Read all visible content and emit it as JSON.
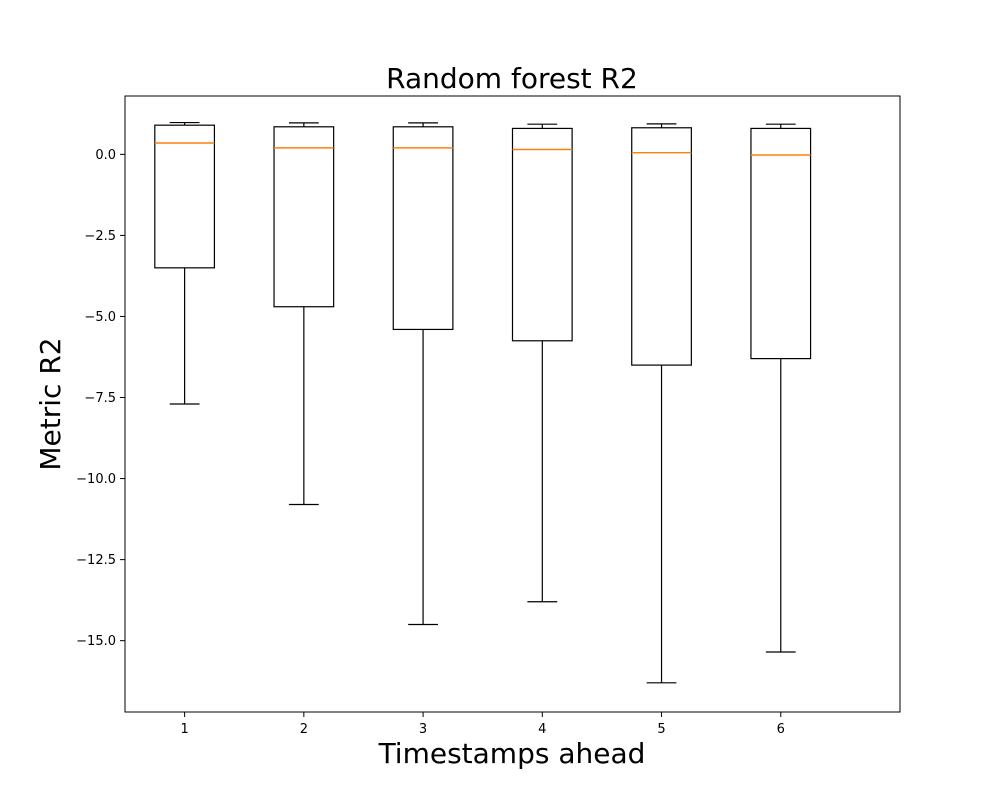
{
  "chart_data": {
    "type": "box",
    "title": "Random forest R2",
    "xlabel": "Timestamps ahead",
    "ylabel": "Metric R2",
    "ylim": [
      -17.2,
      1.8
    ],
    "yticks": [
      0.0,
      -2.5,
      -5.0,
      -7.5,
      -10.0,
      -12.5,
      -15.0
    ],
    "ytick_labels": [
      "0.0",
      "−2.5",
      "−5.0",
      "−7.5",
      "−10.0",
      "−12.5",
      "−15.0"
    ],
    "categories": [
      "1",
      "2",
      "3",
      "4",
      "5",
      "6"
    ],
    "boxes": [
      {
        "category": "1",
        "whisker_low": -7.7,
        "q1": -3.5,
        "median": 0.35,
        "q3": 0.9,
        "whisker_high": 0.98
      },
      {
        "category": "2",
        "whisker_low": -10.8,
        "q1": -4.7,
        "median": 0.2,
        "q3": 0.85,
        "whisker_high": 0.97
      },
      {
        "category": "3",
        "whisker_low": -14.5,
        "q1": -5.4,
        "median": 0.2,
        "q3": 0.85,
        "whisker_high": 0.97
      },
      {
        "category": "4",
        "whisker_low": -13.8,
        "q1": -5.75,
        "median": 0.15,
        "q3": 0.8,
        "whisker_high": 0.93
      },
      {
        "category": "5",
        "whisker_low": -16.3,
        "q1": -6.5,
        "median": 0.05,
        "q3": 0.82,
        "whisker_high": 0.94
      },
      {
        "category": "6",
        "whisker_low": -15.35,
        "q1": -6.3,
        "median": -0.02,
        "q3": 0.8,
        "whisker_high": 0.93
      }
    ],
    "colors": {
      "box": "#000000",
      "median": "#ff7f0e",
      "background": "#ffffff"
    },
    "grid": false,
    "legend": "none"
  }
}
